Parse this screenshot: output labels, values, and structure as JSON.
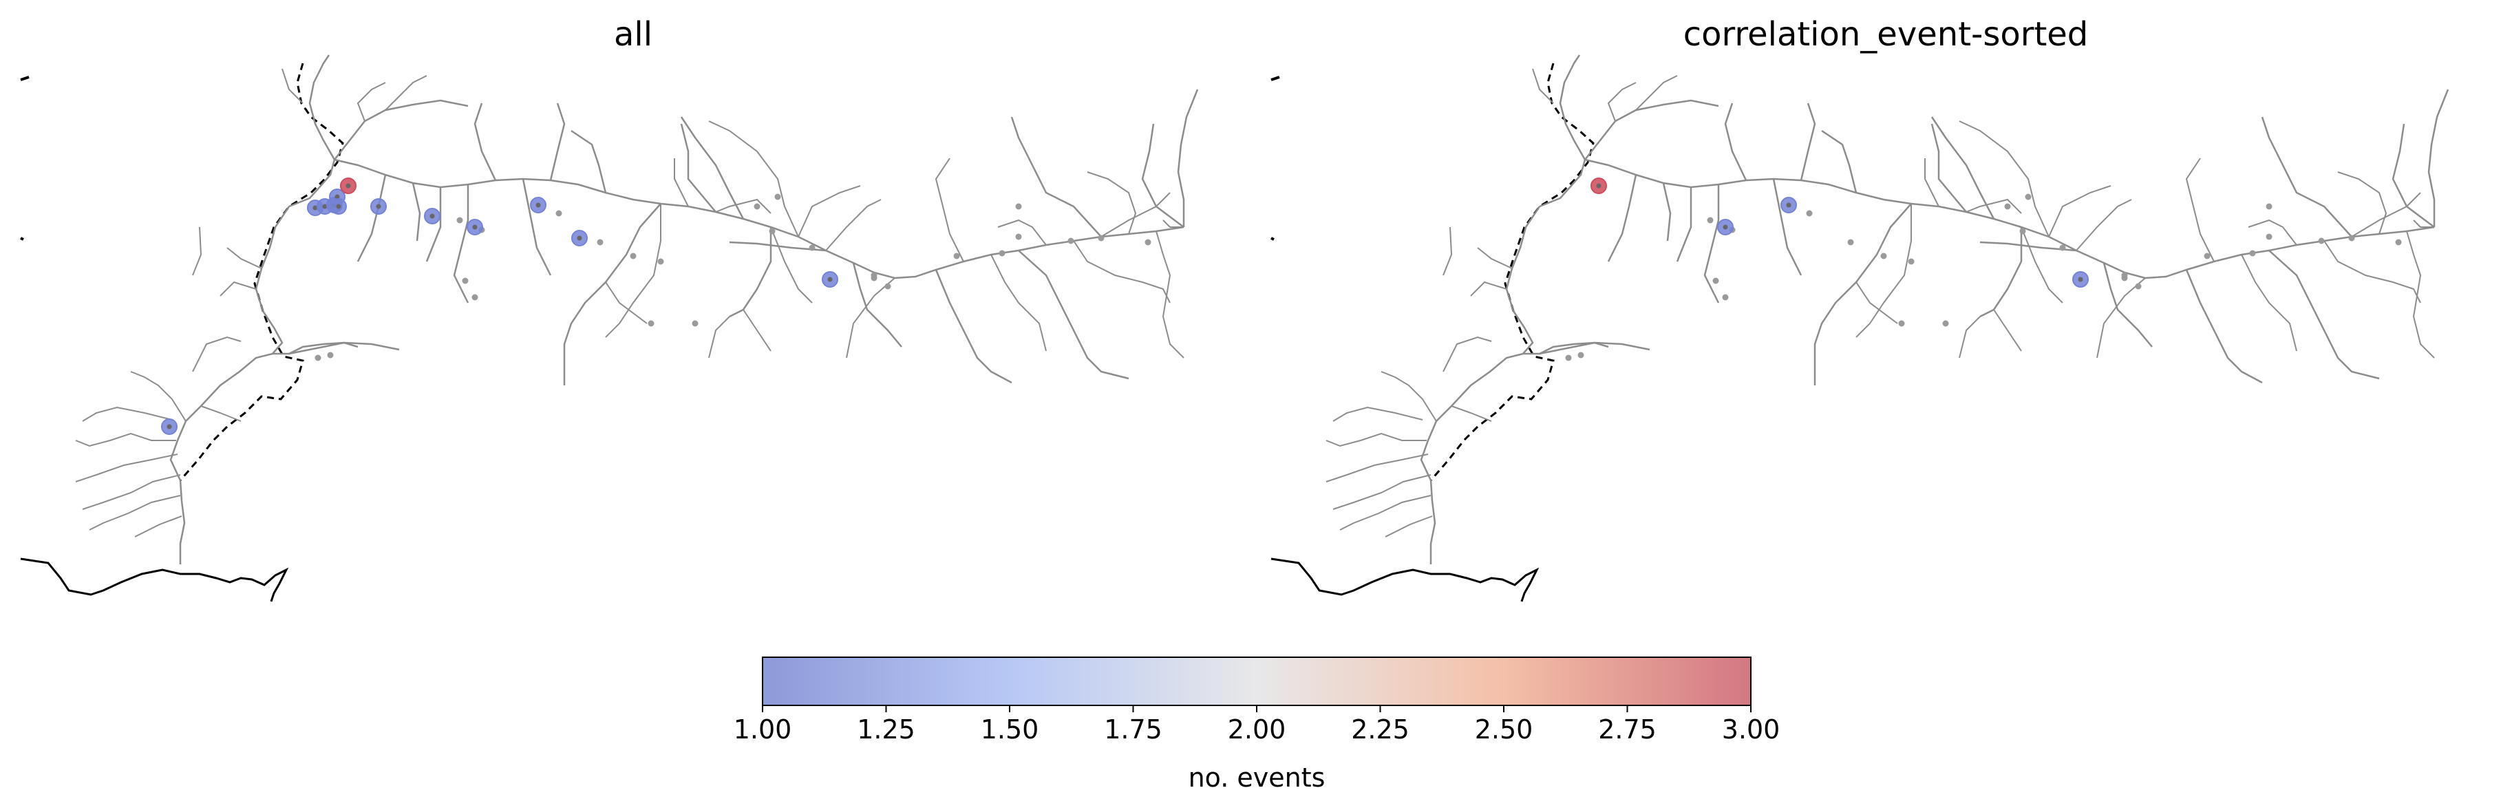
{
  "panels": [
    {
      "title": "all",
      "stations": [
        {
          "id": "s1",
          "value": 1
        },
        {
          "id": "s2",
          "value": 1
        },
        {
          "id": "s3",
          "value": 1
        },
        {
          "id": "s4",
          "value": 1
        },
        {
          "id": "s5",
          "value": 1
        },
        {
          "id": "s6",
          "value": 3
        },
        {
          "id": "s7",
          "value": 1
        },
        {
          "id": "s8",
          "value": 1
        },
        {
          "id": "s9",
          "value": 1
        },
        {
          "id": "s10",
          "value": 1
        },
        {
          "id": "s11",
          "value": 1
        },
        {
          "id": "s12",
          "value": 1
        },
        {
          "id": "s13",
          "value": 1
        }
      ]
    },
    {
      "title": "correlation_event-sorted",
      "stations": [
        {
          "id": "t1",
          "value": 3
        },
        {
          "id": "t2",
          "value": 1
        },
        {
          "id": "t3",
          "value": 1
        },
        {
          "id": "t4",
          "value": 1
        }
      ]
    }
  ],
  "colorbar": {
    "label": "no. events",
    "min": 1.0,
    "max": 3.0,
    "colormap": "coolwarm",
    "tick_labels": [
      "1.00",
      "1.25",
      "1.50",
      "1.75",
      "2.00",
      "2.25",
      "2.50",
      "2.75",
      "3.00"
    ],
    "colors": {
      "low": "#9aa5e0",
      "mid": "#eaeaea",
      "high": "#d9808a"
    }
  },
  "colors": {
    "river": "#8c8c8c",
    "coast": "#000000",
    "border": "#000000",
    "gauge_dot": "#9a9a9a"
  }
}
